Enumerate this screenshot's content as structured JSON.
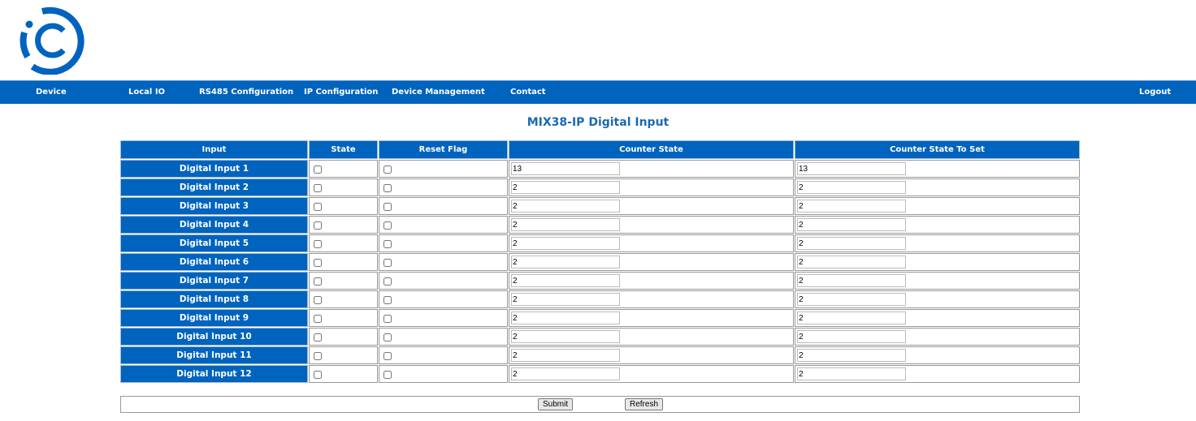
{
  "brand": {
    "color": "#0063be"
  },
  "nav": {
    "items": [
      "Device",
      "Local IO",
      "RS485 Configuration",
      "IP Configuration",
      "Device Management",
      "Contact"
    ],
    "logout": "Logout"
  },
  "page_title": "MIX38-IP Digital Input",
  "table": {
    "headers": [
      "Input",
      "State",
      "Reset Flag",
      "Counter State",
      "Counter State To Set"
    ],
    "rows": [
      {
        "label": "Digital Input 1",
        "state": false,
        "reset": false,
        "counter": "13",
        "to_set": "13"
      },
      {
        "label": "Digital Input 2",
        "state": false,
        "reset": false,
        "counter": "2",
        "to_set": "2"
      },
      {
        "label": "Digital Input 3",
        "state": false,
        "reset": false,
        "counter": "2",
        "to_set": "2"
      },
      {
        "label": "Digital Input 4",
        "state": false,
        "reset": false,
        "counter": "2",
        "to_set": "2"
      },
      {
        "label": "Digital Input 5",
        "state": false,
        "reset": false,
        "counter": "2",
        "to_set": "2"
      },
      {
        "label": "Digital Input 6",
        "state": false,
        "reset": false,
        "counter": "2",
        "to_set": "2"
      },
      {
        "label": "Digital Input 7",
        "state": false,
        "reset": false,
        "counter": "2",
        "to_set": "2"
      },
      {
        "label": "Digital Input 8",
        "state": false,
        "reset": false,
        "counter": "2",
        "to_set": "2"
      },
      {
        "label": "Digital Input 9",
        "state": false,
        "reset": false,
        "counter": "2",
        "to_set": "2"
      },
      {
        "label": "Digital Input 10",
        "state": false,
        "reset": false,
        "counter": "2",
        "to_set": "2"
      },
      {
        "label": "Digital Input 11",
        "state": false,
        "reset": false,
        "counter": "2",
        "to_set": "2"
      },
      {
        "label": "Digital Input 12",
        "state": false,
        "reset": false,
        "counter": "2",
        "to_set": "2"
      }
    ]
  },
  "buttons": {
    "submit": "Submit",
    "refresh": "Refresh"
  }
}
